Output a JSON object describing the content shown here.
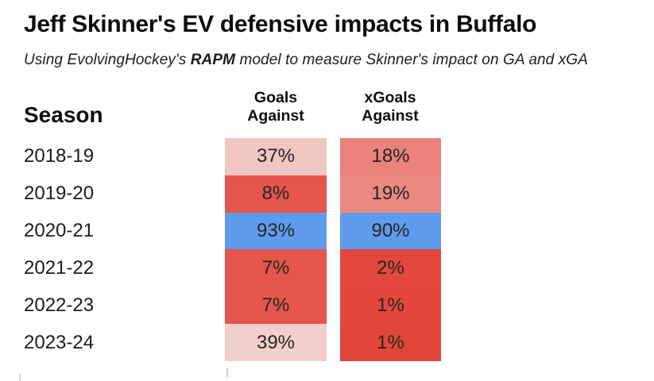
{
  "header": {
    "title": "Jeff Skinner's EV defensive impacts in Buffalo",
    "subtitle_prefix": "Using EvolvingHockey's ",
    "subtitle_bold": "RAPM",
    "subtitle_suffix": " model to measure Skinner's impact on GA and xGA"
  },
  "table": {
    "season_header": "Season",
    "columns": [
      {
        "line1": "Goals",
        "line2": "Against"
      },
      {
        "line1": "xGoals",
        "line2": "Against"
      }
    ],
    "rows": [
      {
        "season": "2018-19",
        "ga": {
          "value": "37%",
          "bg": "#f0c6c1"
        },
        "xga": {
          "value": "18%",
          "bg": "#e8827a"
        }
      },
      {
        "season": "2019-20",
        "ga": {
          "value": "8%",
          "bg": "#e4564b"
        },
        "xga": {
          "value": "19%",
          "bg": "#ea8981"
        }
      },
      {
        "season": "2020-21",
        "ga": {
          "value": "93%",
          "bg": "#5f9bec"
        },
        "xga": {
          "value": "90%",
          "bg": "#5f9bec"
        }
      },
      {
        "season": "2021-22",
        "ga": {
          "value": "7%",
          "bg": "#e4564b"
        },
        "xga": {
          "value": "2%",
          "bg": "#e3483c"
        }
      },
      {
        "season": "2022-23",
        "ga": {
          "value": "7%",
          "bg": "#e4564b"
        },
        "xga": {
          "value": "1%",
          "bg": "#e3473b"
        }
      },
      {
        "season": "2023-24",
        "ga": {
          "value": "39%",
          "bg": "#f2cfca"
        },
        "xga": {
          "value": "1%",
          "bg": "#e2463a"
        }
      }
    ]
  },
  "colors": {
    "good_percentile_blue": "#5f9bec",
    "bad_percentile_red": "#e4564b",
    "worst_percentile_dark_red": "#e2463a",
    "mid_percentile_light_pink": "#f0c6c1",
    "low_percentile_salmon": "#e8827a",
    "background": "#ffffff",
    "text_dark": "#0d0d0d"
  },
  "chart_data": {
    "type": "heatmap",
    "title": "Jeff Skinner's EV defensive impacts in Buffalo",
    "subtitle": "Using EvolvingHockey's RAPM model to measure Skinner's impact on GA and xGA",
    "categories": [
      "2018-19",
      "2019-20",
      "2020-21",
      "2021-22",
      "2022-23",
      "2023-24"
    ],
    "series": [
      {
        "name": "Goals Against",
        "values": [
          37,
          8,
          93,
          7,
          7,
          39
        ]
      },
      {
        "name": "xGoals Against",
        "values": [
          18,
          19,
          90,
          2,
          1,
          1
        ]
      }
    ],
    "value_unit": "percentile %",
    "value_range": [
      0,
      100
    ],
    "color_scale": {
      "low": "#e2463a",
      "mid": "#f2cfca",
      "high": "#5f9bec"
    },
    "legend_position": "none",
    "grid": false
  }
}
